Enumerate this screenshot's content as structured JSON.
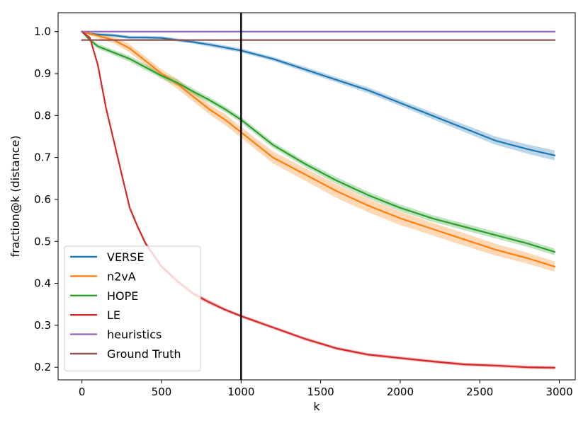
{
  "chart_data": {
    "type": "line",
    "title": "",
    "xlabel": "k",
    "ylabel": "fraction@k (distance)",
    "xlim": [
      -150,
      3100
    ],
    "ylim": [
      0.17,
      1.045
    ],
    "xticks": [
      0,
      500,
      1000,
      1500,
      2000,
      2500,
      3000
    ],
    "xtick_labels": [
      "0",
      "500",
      "1000",
      "1500",
      "2000",
      "2500",
      "3000"
    ],
    "yticks": [
      0.2,
      0.3,
      0.4,
      0.5,
      0.6,
      0.7,
      0.8,
      0.9,
      1.0
    ],
    "ytick_labels": [
      "0.2",
      "0.3",
      "0.4",
      "0.5",
      "0.6",
      "0.7",
      "0.8",
      "0.9",
      "1.0"
    ],
    "grid": false,
    "legend_position": "lower-left",
    "vline_x": 1000,
    "series": [
      {
        "name": "VERSE",
        "color": "#1f77b4",
        "x": [
          0,
          50,
          100,
          200,
          300,
          400,
          500,
          600,
          700,
          800,
          900,
          1000,
          1200,
          1400,
          1600,
          1800,
          2000,
          2200,
          2400,
          2600,
          2800,
          2970
        ],
        "values": [
          1.0,
          0.995,
          0.993,
          0.991,
          0.986,
          0.986,
          0.985,
          0.98,
          0.975,
          0.969,
          0.962,
          0.955,
          0.935,
          0.91,
          0.885,
          0.86,
          0.83,
          0.8,
          0.77,
          0.74,
          0.72,
          0.705
        ],
        "band": [
          0.002,
          0.003,
          0.004,
          0.004,
          0.004,
          0.004,
          0.004,
          0.004,
          0.004,
          0.005,
          0.005,
          0.005,
          0.005,
          0.006,
          0.006,
          0.007,
          0.007,
          0.008,
          0.009,
          0.01,
          0.011,
          0.012
        ]
      },
      {
        "name": "n2vA",
        "color": "#ff7f0e",
        "x": [
          0,
          50,
          100,
          200,
          300,
          400,
          500,
          600,
          700,
          800,
          900,
          1000,
          1200,
          1400,
          1600,
          1800,
          2000,
          2200,
          2400,
          2600,
          2800,
          2970
        ],
        "values": [
          1.0,
          0.995,
          0.99,
          0.98,
          0.96,
          0.93,
          0.9,
          0.875,
          0.845,
          0.815,
          0.79,
          0.76,
          0.7,
          0.66,
          0.62,
          0.585,
          0.555,
          0.53,
          0.505,
          0.48,
          0.46,
          0.44
        ],
        "band": [
          0.002,
          0.004,
          0.006,
          0.008,
          0.01,
          0.01,
          0.01,
          0.012,
          0.012,
          0.012,
          0.013,
          0.013,
          0.014,
          0.015,
          0.016,
          0.016,
          0.016,
          0.015,
          0.015,
          0.014,
          0.013,
          0.012
        ]
      },
      {
        "name": "HOPE",
        "color": "#2ca02c",
        "x": [
          0,
          50,
          100,
          200,
          300,
          400,
          500,
          600,
          700,
          800,
          900,
          1000,
          1200,
          1400,
          1600,
          1800,
          2000,
          2200,
          2400,
          2600,
          2800,
          2970
        ],
        "values": [
          1.0,
          0.98,
          0.965,
          0.95,
          0.935,
          0.915,
          0.895,
          0.878,
          0.857,
          0.837,
          0.815,
          0.79,
          0.73,
          0.685,
          0.645,
          0.61,
          0.58,
          0.555,
          0.535,
          0.515,
          0.495,
          0.475
        ],
        "band": [
          0.002,
          0.004,
          0.006,
          0.006,
          0.007,
          0.007,
          0.007,
          0.007,
          0.007,
          0.007,
          0.007,
          0.007,
          0.007,
          0.007,
          0.008,
          0.008,
          0.008,
          0.008,
          0.008,
          0.008,
          0.008,
          0.008
        ]
      },
      {
        "name": "LE",
        "color": "#d62728",
        "x": [
          0,
          50,
          100,
          150,
          200,
          250,
          300,
          350,
          400,
          500,
          600,
          700,
          800,
          900,
          1000,
          1200,
          1400,
          1600,
          1800,
          2000,
          2200,
          2400,
          2600,
          2800,
          2970
        ],
        "values": [
          1.0,
          0.985,
          0.92,
          0.82,
          0.74,
          0.66,
          0.58,
          0.535,
          0.495,
          0.44,
          0.405,
          0.375,
          0.355,
          0.337,
          0.322,
          0.295,
          0.268,
          0.245,
          0.23,
          0.222,
          0.214,
          0.207,
          0.204,
          0.2,
          0.199
        ],
        "band": [
          0.002,
          0.004,
          0.005,
          0.005,
          0.005,
          0.005,
          0.005,
          0.005,
          0.005,
          0.005,
          0.005,
          0.005,
          0.005,
          0.004,
          0.004,
          0.004,
          0.004,
          0.004,
          0.004,
          0.004,
          0.004,
          0.004,
          0.004,
          0.004,
          0.004
        ]
      },
      {
        "name": "heuristics",
        "color": "#9467bd",
        "x": [
          0,
          2970
        ],
        "values": [
          1.0,
          1.0
        ],
        "band": [
          0,
          0
        ]
      },
      {
        "name": "Ground Truth",
        "color": "#8c564b",
        "x": [
          0,
          2970
        ],
        "values": [
          0.98,
          0.98
        ],
        "band": [
          0,
          0
        ]
      }
    ]
  }
}
